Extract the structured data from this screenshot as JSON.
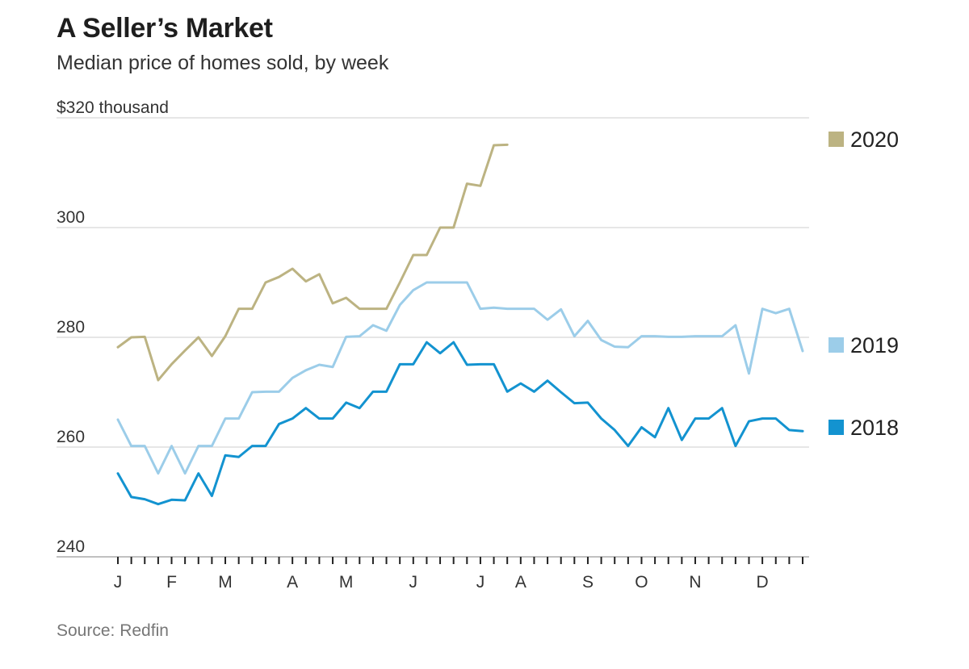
{
  "title": "A Seller’s Market",
  "subtitle": "Median price of homes sold, by week",
  "source": "Source: Redfin",
  "colors": {
    "2020": "#bcb382",
    "2019": "#9ccde9",
    "2018": "#1393d0"
  },
  "chart_data": {
    "type": "line",
    "title": "A Seller’s Market",
    "subtitle": "Median price of homes sold, by week",
    "ylabel": "",
    "ylim": [
      240,
      320
    ],
    "yticks": [
      240,
      260,
      280,
      300,
      320
    ],
    "ytick_labels": [
      "240",
      "260",
      "280",
      "300",
      "$320 thousand"
    ],
    "x_unit": "week",
    "xlim": [
      1,
      52
    ],
    "month_labels": [
      "J",
      "F",
      "M",
      "A",
      "M",
      "J",
      "J",
      "A",
      "S",
      "O",
      "N",
      "D"
    ],
    "month_label_weeks": [
      1,
      5,
      9,
      14,
      18,
      23,
      28,
      31,
      36,
      40,
      44,
      49
    ],
    "legend_position": "right",
    "grid": true,
    "series": [
      {
        "name": "2020",
        "values": [
          278.2,
          280.0,
          280.1,
          272.2,
          275.1,
          277.6,
          280.0,
          276.6,
          280.2,
          285.2,
          285.2,
          290.0,
          291.0,
          292.5,
          290.2,
          291.5,
          286.2,
          287.2,
          285.2,
          285.2,
          285.2,
          290.0,
          295.0,
          295.0,
          300.0,
          300.0,
          308.0,
          307.6,
          315.0,
          315.1
        ]
      },
      {
        "name": "2019",
        "values": [
          265.0,
          260.2,
          260.2,
          255.2,
          260.2,
          255.2,
          260.2,
          260.2,
          265.2,
          265.2,
          270.0,
          270.1,
          270.1,
          272.6,
          274.0,
          275.0,
          274.6,
          280.1,
          280.2,
          282.2,
          281.2,
          285.9,
          288.6,
          290.0,
          290.0,
          290.0,
          290.0,
          285.2,
          285.4,
          285.2,
          285.2,
          285.2,
          283.2,
          285.1,
          280.2,
          283.0,
          279.5,
          278.3,
          278.2,
          280.2,
          280.2,
          280.1,
          280.1,
          280.2,
          280.2,
          280.2,
          282.2,
          273.4,
          285.2,
          284.4,
          285.2,
          277.5
        ]
      },
      {
        "name": "2018",
        "values": [
          255.2,
          250.9,
          250.5,
          249.6,
          250.4,
          250.3,
          255.2,
          251.1,
          258.5,
          258.2,
          260.2,
          260.2,
          264.2,
          265.2,
          267.1,
          265.2,
          265.2,
          268.1,
          267.1,
          270.1,
          270.1,
          275.1,
          275.1,
          279.1,
          277.1,
          279.1,
          275.0,
          275.1,
          275.1,
          270.1,
          271.6,
          270.1,
          272.1,
          270.0,
          268.0,
          268.1,
          265.2,
          263.1,
          260.2,
          263.6,
          261.8,
          267.1,
          261.3,
          265.2,
          265.2,
          267.1,
          260.2,
          264.7,
          265.2,
          265.2,
          263.1,
          262.9
        ]
      }
    ]
  }
}
